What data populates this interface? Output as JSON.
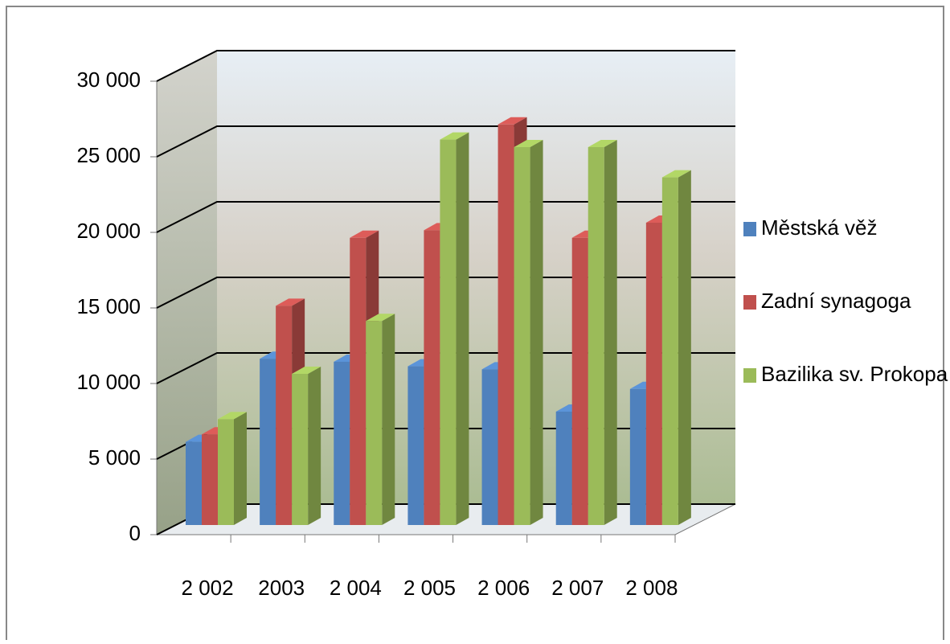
{
  "chart_data": {
    "type": "bar3d",
    "categories": [
      "2 002",
      "2003",
      "2 004",
      "2 005",
      "2 006",
      "2 007",
      "2 008"
    ],
    "series": [
      {
        "name": "Městská věž",
        "color": "#4f81bd",
        "values": [
          5500,
          11000,
          10800,
          10500,
          10300,
          7500,
          9000
        ]
      },
      {
        "name": "Zadní synagoga",
        "color": "#c0504d",
        "values": [
          6000,
          14500,
          19000,
          19500,
          26500,
          19000,
          20000
        ]
      },
      {
        "name": "Bazilika sv. Prokopa",
        "color": "#9bbb59",
        "values": [
          7000,
          10000,
          13500,
          25500,
          25000,
          25000,
          23000
        ]
      }
    ],
    "ylim": [
      0,
      30000
    ],
    "yticks": [
      {
        "value": 0,
        "label": "0"
      },
      {
        "value": 5000,
        "label": "5 000"
      },
      {
        "value": 10000,
        "label": "10 000"
      },
      {
        "value": 15000,
        "label": "15 000"
      },
      {
        "value": 20000,
        "label": "20 000"
      },
      {
        "value": 25000,
        "label": "25 000"
      },
      {
        "value": 30000,
        "label": "30 000"
      }
    ],
    "grid": true,
    "legend": "right"
  }
}
